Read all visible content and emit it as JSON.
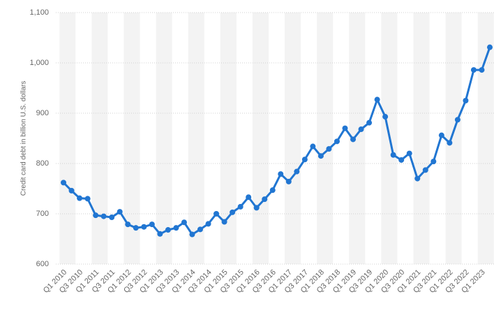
{
  "chart_data": {
    "type": "line",
    "y_axis_label": "Credit card debt in billion U.S. dollars",
    "categories": [
      "Q1 2010",
      null,
      "Q3 2010",
      null,
      "Q1 2011",
      null,
      "Q3 2011",
      null,
      "Q1 2012",
      null,
      "Q3 2012",
      null,
      "Q1 2013",
      null,
      "Q3 2013",
      null,
      "Q1 2014",
      null,
      "Q3 2014",
      null,
      "Q1 2015",
      null,
      "Q3 2015",
      null,
      "Q1 2016",
      null,
      "Q3 2016",
      null,
      "Q1 2017",
      null,
      "Q3 2017",
      null,
      "Q1 2018",
      null,
      "Q3 2018",
      null,
      "Q1 2019",
      null,
      "Q3 2019",
      null,
      "Q1 2020",
      null,
      "Q3 2020",
      null,
      "Q1 2021",
      null,
      "Q3 2021",
      null,
      "Q1 2022",
      null,
      "Q3 2022",
      null,
      "Q1 2023",
      null
    ],
    "series": [
      {
        "color": "#2176d2",
        "values": [
          762,
          746,
          731,
          730,
          697,
          695,
          693,
          704,
          679,
          672,
          674,
          679,
          660,
          668,
          672,
          683,
          659,
          669,
          680,
          700,
          684,
          703,
          714,
          733,
          712,
          729,
          747,
          779,
          764,
          784,
          808,
          834,
          815,
          829,
          844,
          870,
          848,
          868,
          881,
          927,
          893,
          817,
          807,
          820,
          770,
          787,
          804,
          856,
          841,
          887,
          925,
          986,
          986,
          1031
        ]
      }
    ],
    "ylim": [
      600,
      1100
    ],
    "yticks": [
      600,
      700,
      800,
      900,
      {
        "value": 1000,
        "label": "1,000"
      },
      {
        "value": 1100,
        "label": "1,100"
      }
    ],
    "grid": true
  }
}
